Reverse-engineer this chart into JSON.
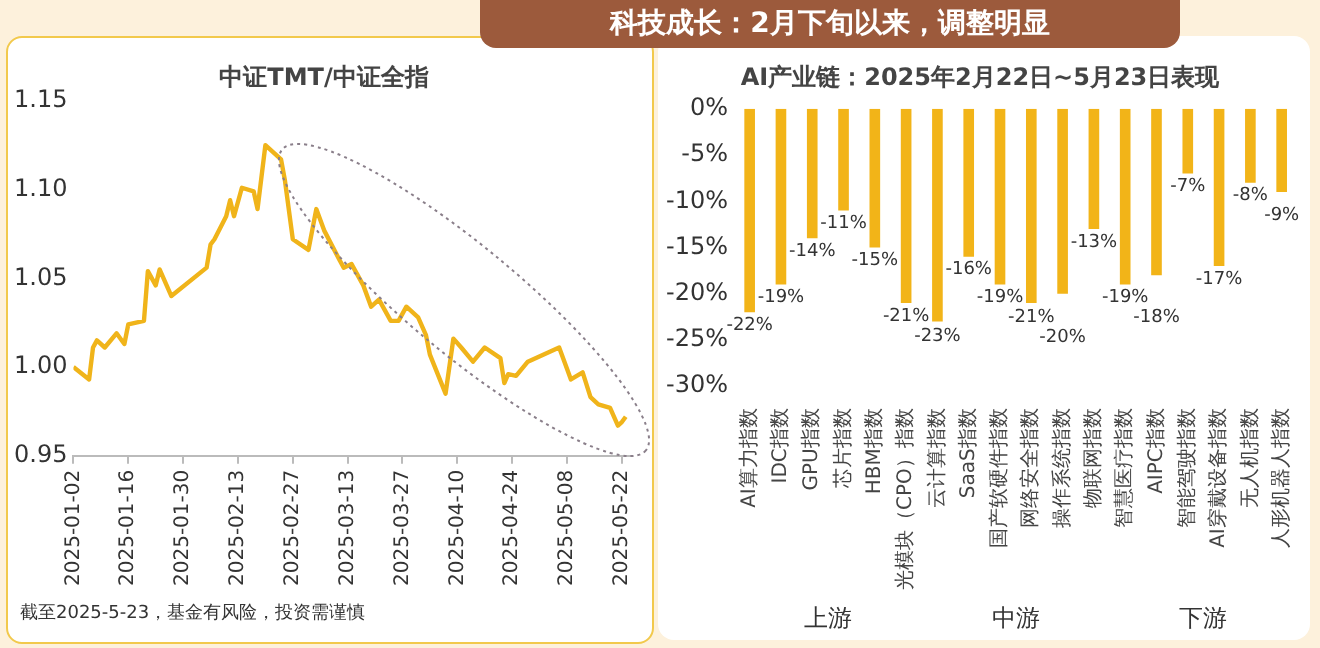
{
  "chart_data": [
    {
      "type": "other",
      "title": "科技成长：2月下旬以来，调整明显"
    },
    {
      "type": "line",
      "subtitle": "中证TMT/中证全指",
      "color": "#f0b41a",
      "marker": "none",
      "x": [
        "2025-01-02",
        "2025-01-06",
        "2025-01-07",
        "2025-01-08",
        "2025-01-10",
        "2025-01-13",
        "2025-01-15",
        "2025-01-16",
        "2025-01-20",
        "2025-01-21",
        "2025-01-23",
        "2025-01-24",
        "2025-01-27",
        "2025-02-05",
        "2025-02-06",
        "2025-02-07",
        "2025-02-10",
        "2025-02-11",
        "2025-02-12",
        "2025-02-14",
        "2025-02-17",
        "2025-02-18",
        "2025-02-20",
        "2025-02-24",
        "2025-02-25",
        "2025-02-27",
        "2025-03-03",
        "2025-03-05",
        "2025-03-07",
        "2025-03-11",
        "2025-03-12",
        "2025-03-14",
        "2025-03-17",
        "2025-03-19",
        "2025-03-21",
        "2025-03-24",
        "2025-03-26",
        "2025-03-28",
        "2025-03-31",
        "2025-04-02",
        "2025-04-03",
        "2025-04-07",
        "2025-04-09",
        "2025-04-11",
        "2025-04-14",
        "2025-04-17",
        "2025-04-21",
        "2025-04-22",
        "2025-04-23",
        "2025-04-25",
        "2025-04-28",
        "2025-05-06",
        "2025-05-08",
        "2025-05-09",
        "2025-05-12",
        "2025-05-14",
        "2025-05-16",
        "2025-05-19",
        "2025-05-21",
        "2025-05-22",
        "2025-05-23"
      ],
      "values": [
        1.0,
        0.993,
        1.011,
        1.015,
        1.011,
        1.019,
        1.013,
        1.024,
        1.026,
        1.054,
        1.046,
        1.055,
        1.04,
        1.056,
        1.069,
        1.072,
        1.085,
        1.094,
        1.085,
        1.101,
        1.099,
        1.089,
        1.125,
        1.117,
        1.105,
        1.072,
        1.066,
        1.089,
        1.077,
        1.06,
        1.056,
        1.058,
        1.046,
        1.034,
        1.038,
        1.026,
        1.026,
        1.034,
        1.028,
        1.018,
        1.007,
        0.985,
        1.016,
        1.011,
        1.003,
        1.011,
        1.005,
        0.991,
        0.996,
        0.995,
        1.003,
        1.011,
        0.999,
        0.993,
        0.997,
        0.983,
        0.979,
        0.977,
        0.967,
        0.969,
        0.972
      ],
      "xlim": [
        "2025-01-02",
        "2025-05-24"
      ],
      "xticks": [
        "2025-01-02",
        "2025-01-16",
        "2025-01-30",
        "2025-02-13",
        "2025-02-27",
        "2025-03-13",
        "2025-03-27",
        "2025-04-10",
        "2025-04-24",
        "2025-05-08",
        "2025-05-22"
      ],
      "ylim": [
        0.95,
        1.15
      ],
      "yticks": [
        0.95,
        {
          "value": 1,
          "label": "1.00"
        },
        1.05,
        {
          "value": 1.1,
          "label": "1.10"
        },
        1.15
      ],
      "annotations": [
        "截至2025-5-23，基金有风险，投资需谨慎"
      ]
    },
    {
      "type": "bar",
      "title": "AI产业链：2025年2月22日~5月23日表现",
      "color": "#f2b418",
      "categories": [
        "AI算力指数",
        "IDC指数",
        "GPU指数",
        "芯片指数",
        "HBM指数",
        "光模块（CPO）指数",
        "云计算指数",
        "SaaS指数",
        "国产软硬件指数",
        "网络安全指数",
        "操作系统指数",
        "物联网指数",
        "智慧医疗指数",
        "AIPC指数",
        "智能驾驶指数",
        "AI穿戴设备指数",
        "无人机指数",
        "人形机器人指数"
      ],
      "values": [
        -22,
        -19,
        -14,
        -11,
        -15,
        -21,
        -23,
        -16,
        -19,
        -21,
        -20,
        -13,
        -19,
        -18,
        -7,
        -17,
        -8,
        -9
      ],
      "value_labels": [
        "-22%",
        "-19%",
        "-14%",
        "-11%",
        "-15%",
        "-21%",
        "-23%",
        "-16%",
        "-19%",
        "-21%",
        "-20%",
        "-13%",
        "-19%",
        "-18%",
        "-7%",
        "-17%",
        "-8%",
        "-9%"
      ],
      "ylim": [
        -30,
        0
      ],
      "yticks": [
        {
          "value": -30,
          "label": "-30%"
        },
        {
          "value": -25,
          "label": "-25%"
        },
        {
          "value": -20,
          "label": "-20%"
        },
        {
          "value": -15,
          "label": "-15%"
        },
        {
          "value": -10,
          "label": "-10%"
        },
        {
          "value": -5,
          "label": "-5%"
        },
        {
          "value": 0,
          "label": "0%"
        }
      ],
      "annotations": [
        "上游",
        "中游",
        "下游"
      ]
    }
  ]
}
